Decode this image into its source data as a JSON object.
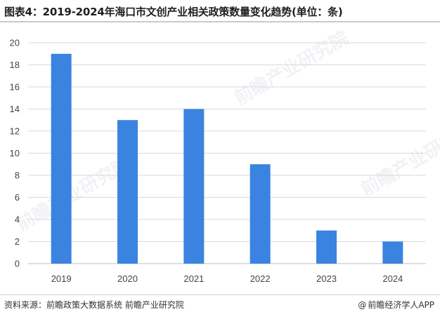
{
  "title": "图表4：2019-2024年海口市文创产业相关政策数量变化趋势(单位：条)",
  "footer": {
    "source": "资料来源：前瞻政策大数据系统 前瞻产业研究院",
    "brand": "前瞻经济学人APP",
    "brand_icon": "at-sign-icon"
  },
  "watermark_text": "前瞻产业研究院",
  "colors": {
    "bar": "#3a83e1",
    "grid": "#d9d9d9",
    "axis": "#bfbfbf"
  },
  "chart_data": {
    "type": "bar",
    "title": "图表4：2019-2024年海口市文创产业相关政策数量变化趋势(单位：条)",
    "xlabel": "",
    "ylabel": "",
    "categories": [
      "2019",
      "2020",
      "2021",
      "2022",
      "2023",
      "2024"
    ],
    "values": [
      19,
      13,
      14,
      9,
      3,
      2
    ],
    "ylim": [
      0,
      20
    ],
    "yticks": [
      0,
      2,
      4,
      6,
      8,
      10,
      12,
      14,
      16,
      18,
      20
    ],
    "grid": true,
    "legend": "none"
  }
}
